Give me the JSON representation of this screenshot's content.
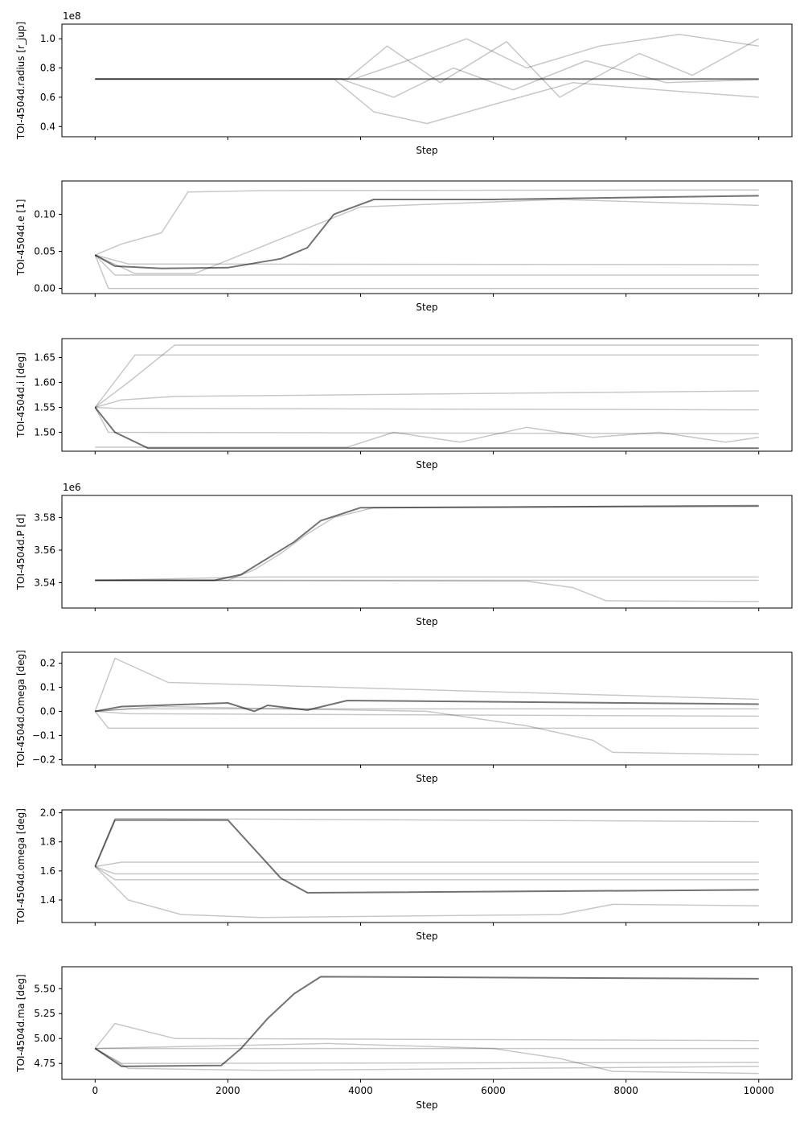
{
  "chart_data": [
    {
      "type": "line",
      "ylabel": "TOI-4504d.radius [r_jup]",
      "xlabel": "Step",
      "offset_text": "1e8",
      "show_x_tick_labels": false,
      "xlim": [
        -500,
        10500
      ],
      "ylim": [
        0.33,
        1.1
      ],
      "yticks": [
        0.4,
        0.6,
        0.8,
        1.0
      ],
      "ytick_labels": [
        "0.4",
        "0.6",
        "0.8",
        "1.0"
      ],
      "xticks": [
        0,
        2000,
        4000,
        6000,
        8000,
        10000
      ],
      "series": [
        {
          "x": [
            0,
            3500,
            10000
          ],
          "values": [
            0.725,
            0.725,
            0.725
          ]
        },
        {
          "x": [
            0,
            3800,
            4400,
            5200,
            6200,
            7000,
            8200,
            9000,
            10000
          ],
          "values": [
            0.725,
            0.725,
            0.95,
            0.7,
            0.98,
            0.6,
            0.9,
            0.75,
            1.0
          ]
        },
        {
          "x": [
            0,
            3600,
            4200,
            5000,
            6000,
            7200,
            8500,
            10000
          ],
          "values": [
            0.725,
            0.725,
            0.5,
            0.42,
            0.55,
            0.7,
            0.65,
            0.6
          ]
        },
        {
          "x": [
            0,
            3900,
            4700,
            5600,
            6500,
            7600,
            8800,
            10000
          ],
          "values": [
            0.725,
            0.725,
            0.85,
            1.0,
            0.8,
            0.95,
            1.03,
            0.95
          ]
        },
        {
          "x": [
            0,
            3700,
            4500,
            5400,
            6300,
            7400,
            8600,
            10000
          ],
          "values": [
            0.725,
            0.725,
            0.6,
            0.8,
            0.65,
            0.85,
            0.7,
            0.72
          ]
        }
      ]
    },
    {
      "type": "line",
      "ylabel": "TOI-4504d.e [1]",
      "xlabel": "Step",
      "show_x_tick_labels": false,
      "xlim": [
        -500,
        10500
      ],
      "ylim": [
        -0.007,
        0.145
      ],
      "yticks": [
        0.0,
        0.05,
        0.1
      ],
      "ytick_labels": [
        "0.00",
        "0.05",
        "0.10"
      ],
      "xticks": [
        0,
        2000,
        4000,
        6000,
        8000,
        10000
      ],
      "series": [
        {
          "x": [
            0,
            300,
            1000,
            2000,
            2800,
            3200,
            3600,
            4200,
            6000,
            10000
          ],
          "values": [
            0.045,
            0.03,
            0.027,
            0.028,
            0.04,
            0.055,
            0.1,
            0.12,
            0.12,
            0.125
          ]
        },
        {
          "x": [
            0,
            400,
            1000,
            1400,
            2500,
            10000
          ],
          "values": [
            0.045,
            0.06,
            0.075,
            0.13,
            0.132,
            0.133
          ]
        },
        {
          "x": [
            0,
            500,
            10000
          ],
          "values": [
            0.045,
            0.033,
            0.032
          ]
        },
        {
          "x": [
            0,
            200,
            10000
          ],
          "values": [
            0.045,
            0.0,
            0.0
          ]
        },
        {
          "x": [
            0,
            600,
            1500,
            4000,
            7000,
            10000
          ],
          "values": [
            0.045,
            0.02,
            0.02,
            0.11,
            0.12,
            0.112
          ]
        },
        {
          "x": [
            0,
            300,
            10000
          ],
          "values": [
            0.045,
            0.018,
            0.018
          ]
        }
      ]
    },
    {
      "type": "line",
      "ylabel": "TOI-4504d.i [deg]",
      "xlabel": "Step",
      "show_x_tick_labels": false,
      "xlim": [
        -500,
        10500
      ],
      "ylim": [
        1.462,
        1.688
      ],
      "yticks": [
        1.5,
        1.55,
        1.6,
        1.65
      ],
      "ytick_labels": [
        "1.50",
        "1.55",
        "1.60",
        "1.65"
      ],
      "xticks": [
        0,
        2000,
        4000,
        6000,
        8000,
        10000
      ],
      "series": [
        {
          "x": [
            0,
            300,
            800,
            10000
          ],
          "values": [
            1.55,
            1.5,
            1.468,
            1.468
          ]
        },
        {
          "x": [
            0,
            500,
            1200,
            2500,
            10000
          ],
          "values": [
            1.55,
            1.6,
            1.675,
            1.675,
            1.675
          ]
        },
        {
          "x": [
            0,
            400,
            1200,
            10000
          ],
          "values": [
            1.55,
            1.565,
            1.572,
            1.583
          ]
        },
        {
          "x": [
            0,
            300,
            10000
          ],
          "values": [
            1.55,
            1.548,
            1.545
          ]
        },
        {
          "x": [
            0,
            200,
            10000
          ],
          "values": [
            1.55,
            1.5,
            1.497
          ]
        },
        {
          "x": [
            0,
            3800,
            4500,
            5500,
            6500,
            7500,
            8500,
            9500,
            10000
          ],
          "values": [
            1.47,
            1.47,
            1.5,
            1.48,
            1.51,
            1.49,
            1.5,
            1.48,
            1.49
          ]
        },
        {
          "x": [
            0,
            600,
            10000
          ],
          "values": [
            1.55,
            1.655,
            1.655
          ]
        }
      ]
    },
    {
      "type": "line",
      "ylabel": "TOI-4504d.P [d]",
      "xlabel": "Step",
      "offset_text": "1e6",
      "show_x_tick_labels": false,
      "xlim": [
        -500,
        10500
      ],
      "ylim": [
        3.5245,
        3.5935
      ],
      "yticks": [
        3.54,
        3.56,
        3.58
      ],
      "ytick_labels": [
        "3.54",
        "3.56",
        "3.58"
      ],
      "xticks": [
        0,
        2000,
        4000,
        6000,
        8000,
        10000
      ],
      "series": [
        {
          "x": [
            0,
            1800,
            2200,
            2600,
            3000,
            3400,
            4000,
            10000
          ],
          "values": [
            3.5415,
            3.5415,
            3.545,
            3.555,
            3.565,
            3.578,
            3.586,
            3.587
          ]
        },
        {
          "x": [
            0,
            2000,
            2400,
            2800,
            3200,
            3600,
            4200,
            10000
          ],
          "values": [
            3.5415,
            3.5415,
            3.548,
            3.558,
            3.57,
            3.58,
            3.586,
            3.5875
          ]
        },
        {
          "x": [
            0,
            10000
          ],
          "values": [
            3.5415,
            3.5415
          ]
        },
        {
          "x": [
            0,
            2500,
            10000
          ],
          "values": [
            3.5415,
            3.5435,
            3.5435
          ]
        },
        {
          "x": [
            0,
            6500,
            7200,
            7700,
            10000
          ],
          "values": [
            3.5415,
            3.541,
            3.537,
            3.529,
            3.5285
          ]
        }
      ]
    },
    {
      "type": "line",
      "ylabel": "TOI-4504d.Omega [deg]",
      "xlabel": "Step",
      "show_x_tick_labels": false,
      "xlim": [
        -500,
        10500
      ],
      "ylim": [
        -0.222,
        0.245
      ],
      "yticks": [
        -0.2,
        -0.1,
        0.0,
        0.1,
        0.2
      ],
      "ytick_labels": [
        "−0.2",
        "−0.1",
        "0.0",
        "0.1",
        "0.2"
      ],
      "xticks": [
        0,
        2000,
        4000,
        6000,
        8000,
        10000
      ],
      "series": [
        {
          "x": [
            0,
            400,
            2000,
            2400,
            2600,
            3200,
            3800,
            10000
          ],
          "values": [
            0.0,
            0.02,
            0.035,
            0.0,
            0.025,
            0.005,
            0.045,
            0.03
          ]
        },
        {
          "x": [
            0,
            1000,
            5000,
            6500,
            7500,
            7800,
            10000
          ],
          "values": [
            0.0,
            0.02,
            0.0,
            -0.06,
            -0.12,
            -0.17,
            -0.18
          ]
        },
        {
          "x": [
            0,
            300,
            1100,
            10000
          ],
          "values": [
            0.0,
            0.22,
            0.12,
            0.05
          ]
        },
        {
          "x": [
            0,
            200,
            10000
          ],
          "values": [
            0.0,
            -0.07,
            -0.07
          ]
        },
        {
          "x": [
            0,
            500,
            10000
          ],
          "values": [
            0.0,
            0.01,
            0.01
          ]
        },
        {
          "x": [
            0,
            500,
            10000
          ],
          "values": [
            0.0,
            -0.01,
            -0.02
          ]
        }
      ]
    },
    {
      "type": "line",
      "ylabel": "TOI-4504d.omega [deg]",
      "xlabel": "Step",
      "show_x_tick_labels": false,
      "xlim": [
        -500,
        10500
      ],
      "ylim": [
        1.245,
        2.02
      ],
      "yticks": [
        1.4,
        1.6,
        1.8,
        2.0
      ],
      "ytick_labels": [
        "1.4",
        "1.6",
        "1.8",
        "2.0"
      ],
      "xticks": [
        0,
        2000,
        4000,
        6000,
        8000,
        10000
      ],
      "series": [
        {
          "x": [
            0,
            300,
            2000,
            2400,
            2800,
            3200,
            10000
          ],
          "values": [
            1.63,
            1.95,
            1.95,
            1.75,
            1.55,
            1.45,
            1.47
          ]
        },
        {
          "x": [
            0,
            300,
            1000,
            10000
          ],
          "values": [
            1.63,
            1.96,
            1.96,
            1.94
          ]
        },
        {
          "x": [
            0,
            500,
            1300,
            2500,
            7000,
            7800,
            10000
          ],
          "values": [
            1.63,
            1.4,
            1.3,
            1.28,
            1.3,
            1.37,
            1.36
          ]
        },
        {
          "x": [
            0,
            300,
            10000
          ],
          "values": [
            1.63,
            1.58,
            1.58
          ]
        },
        {
          "x": [
            0,
            400,
            10000
          ],
          "values": [
            1.63,
            1.66,
            1.66
          ]
        },
        {
          "x": [
            0,
            300,
            10000
          ],
          "values": [
            1.63,
            1.54,
            1.54
          ]
        }
      ]
    },
    {
      "type": "line",
      "ylabel": "TOI-4504d.ma [deg]",
      "xlabel": "Step",
      "show_x_tick_labels": true,
      "xlim": [
        -500,
        10500
      ],
      "ylim": [
        4.59,
        5.72
      ],
      "yticks": [
        4.75,
        5.0,
        5.25,
        5.5
      ],
      "ytick_labels": [
        "4.75",
        "5.00",
        "5.25",
        "5.50"
      ],
      "xticks": [
        0,
        2000,
        4000,
        6000,
        8000,
        10000
      ],
      "xtick_labels": [
        "0",
        "2000",
        "4000",
        "6000",
        "8000",
        "10000"
      ],
      "series": [
        {
          "x": [
            0,
            400,
            1900,
            2200,
            2600,
            3000,
            3400,
            10000
          ],
          "values": [
            4.9,
            4.72,
            4.73,
            4.9,
            5.2,
            5.45,
            5.62,
            5.6
          ]
        },
        {
          "x": [
            0,
            10000
          ],
          "values": [
            4.9,
            4.9
          ]
        },
        {
          "x": [
            0,
            3500,
            6000,
            7000,
            7800,
            10000
          ],
          "values": [
            4.9,
            4.95,
            4.9,
            4.8,
            4.67,
            4.65
          ]
        },
        {
          "x": [
            0,
            300,
            1200,
            10000
          ],
          "values": [
            4.9,
            5.15,
            5.0,
            4.98
          ]
        },
        {
          "x": [
            0,
            400,
            10000
          ],
          "values": [
            4.9,
            4.75,
            4.76
          ]
        },
        {
          "x": [
            0,
            500,
            2500,
            10000
          ],
          "values": [
            4.9,
            4.7,
            4.68,
            4.72
          ]
        }
      ]
    }
  ]
}
